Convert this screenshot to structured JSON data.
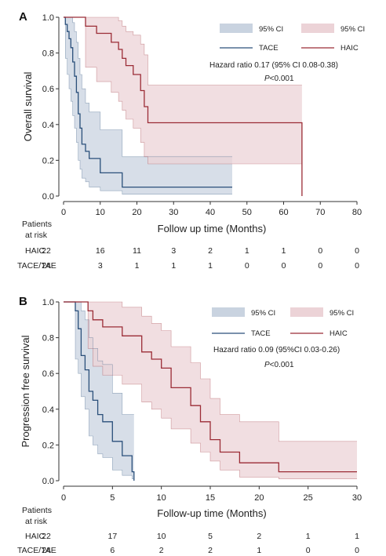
{
  "chart_data": [
    {
      "type": "line",
      "panel": "A",
      "xlabel": "Follow up time (Months)",
      "ylabel": "Overall survival",
      "xlim": [
        0,
        80
      ],
      "ylim": [
        0,
        1
      ],
      "xticks": [
        "0",
        "10",
        "20",
        "30",
        "40",
        "50",
        "60",
        "70",
        "80"
      ],
      "yticks": [
        "0.0",
        "0.2",
        "0.4",
        "0.6",
        "0.8",
        "1.0"
      ],
      "legend": {
        "placement": "top-right",
        "ci_tace": "95% CI",
        "ci_haic": "95% CI",
        "tace": "TACE",
        "haic": "HAIC"
      },
      "hazard_text": "Hazard ratio 0.17 (95% CI 0.08-0.38)",
      "p_italic": "P",
      "p_rest": "<0.001",
      "series": [
        {
          "name": "TACE",
          "color": "#2a4f7a",
          "ci_color": "#c9d3e0",
          "x": [
            0,
            0.5,
            1,
            1.5,
            2,
            2.5,
            3,
            3.5,
            4,
            4.5,
            5,
            6,
            7,
            10,
            16,
            46
          ],
          "y": [
            1,
            0.96,
            0.92,
            0.88,
            0.83,
            0.75,
            0.67,
            0.58,
            0.46,
            0.38,
            0.29,
            0.25,
            0.21,
            0.13,
            0.05,
            0.05
          ],
          "upper": [
            1,
            1,
            1,
            1,
            1,
            0.97,
            0.92,
            0.86,
            0.77,
            0.68,
            0.6,
            0.52,
            0.47,
            0.37,
            0.22,
            0.22
          ],
          "lower": [
            1,
            0.77,
            0.68,
            0.6,
            0.53,
            0.45,
            0.38,
            0.3,
            0.2,
            0.15,
            0.1,
            0.08,
            0.05,
            0.03,
            0.01,
            0.01
          ]
        },
        {
          "name": "HAIC",
          "color": "#9b2c36",
          "ci_color": "#ecd3d7",
          "x": [
            0,
            6,
            9,
            13,
            15,
            16,
            17,
            19,
            21,
            22,
            23,
            65
          ],
          "y": [
            1,
            0.95,
            0.91,
            0.86,
            0.82,
            0.77,
            0.73,
            0.68,
            0.59,
            0.5,
            0.41,
            0
          ],
          "upper": [
            1,
            1,
            1,
            1,
            0.98,
            0.95,
            0.92,
            0.9,
            0.85,
            0.79,
            0.62,
            0.62
          ],
          "lower": [
            1,
            0.72,
            0.64,
            0.58,
            0.53,
            0.48,
            0.43,
            0.38,
            0.3,
            0.22,
            0.18,
            0.18
          ]
        }
      ],
      "risk": {
        "header1": "Patients",
        "header2": "at risk",
        "rows": [
          {
            "label": "HAIC",
            "values": [
              "22",
              "16",
              "11",
              "3",
              "2",
              "1",
              "1",
              "0",
              "0"
            ]
          },
          {
            "label": "TACE/TAE",
            "values": [
              "24",
              "3",
              "1",
              "1",
              "1",
              "0",
              "0",
              "0",
              "0"
            ]
          }
        ]
      }
    },
    {
      "type": "line",
      "panel": "B",
      "xlabel": "Follow-up time (Months)",
      "ylabel": "Progression free survival",
      "xlim": [
        0,
        30
      ],
      "ylim": [
        0,
        1
      ],
      "xticks": [
        "0",
        "5",
        "10",
        "15",
        "20",
        "25",
        "30"
      ],
      "yticks": [
        "0.0",
        "0.2",
        "0.4",
        "0.6",
        "0.8",
        "1.0"
      ],
      "legend": {
        "placement": "top-right",
        "ci_tace": "95% CI",
        "ci_haic": "95% CI",
        "tace": "TACE",
        "haic": "HAIC"
      },
      "hazard_text": "Hazard ratio 0.09 (95%CI 0.03-0.26)",
      "p_italic": "P",
      "p_rest": "<0.001",
      "series": [
        {
          "name": "TACE",
          "color": "#2a4f7a",
          "ci_color": "#c9d3e0",
          "x": [
            0,
            1.2,
            1.5,
            1.8,
            2.2,
            2.6,
            3,
            3.5,
            4,
            5,
            6,
            7,
            7.2
          ],
          "y": [
            1,
            0.95,
            0.85,
            0.7,
            0.62,
            0.5,
            0.45,
            0.37,
            0.33,
            0.22,
            0.14,
            0.05,
            0
          ],
          "upper": [
            1,
            1,
            1,
            0.95,
            0.9,
            0.8,
            0.74,
            0.67,
            0.65,
            0.49,
            0.37,
            0.37,
            0.37
          ],
          "lower": [
            1,
            0.68,
            0.6,
            0.47,
            0.4,
            0.25,
            0.2,
            0.15,
            0.13,
            0.06,
            0.03,
            0.01,
            0
          ]
        },
        {
          "name": "HAIC",
          "color": "#9b2c36",
          "ci_color": "#ecd3d7",
          "x": [
            0,
            2.5,
            3,
            4,
            6,
            8,
            9,
            10,
            11,
            13,
            14,
            15,
            16,
            18,
            22,
            30
          ],
          "y": [
            1,
            0.95,
            0.9,
            0.86,
            0.81,
            0.72,
            0.68,
            0.63,
            0.52,
            0.42,
            0.33,
            0.23,
            0.16,
            0.1,
            0.05,
            0.05
          ],
          "upper": [
            1,
            1,
            1,
            1,
            0.97,
            0.92,
            0.88,
            0.84,
            0.75,
            0.66,
            0.57,
            0.46,
            0.37,
            0.33,
            0.22,
            0.22
          ],
          "lower": [
            1,
            0.74,
            0.64,
            0.59,
            0.54,
            0.44,
            0.4,
            0.35,
            0.29,
            0.21,
            0.16,
            0.11,
            0.06,
            0.02,
            0.01,
            0.01
          ]
        }
      ],
      "risk": {
        "header1": "Patients",
        "header2": "at risk",
        "rows": [
          {
            "label": "HAIC",
            "values": [
              "22",
              "17",
              "10",
              "5",
              "2",
              "1",
              "1"
            ]
          },
          {
            "label": "TACE/TAE",
            "values": [
              "24",
              "6",
              "2",
              "2",
              "1",
              "0",
              "0"
            ]
          }
        ]
      }
    }
  ]
}
